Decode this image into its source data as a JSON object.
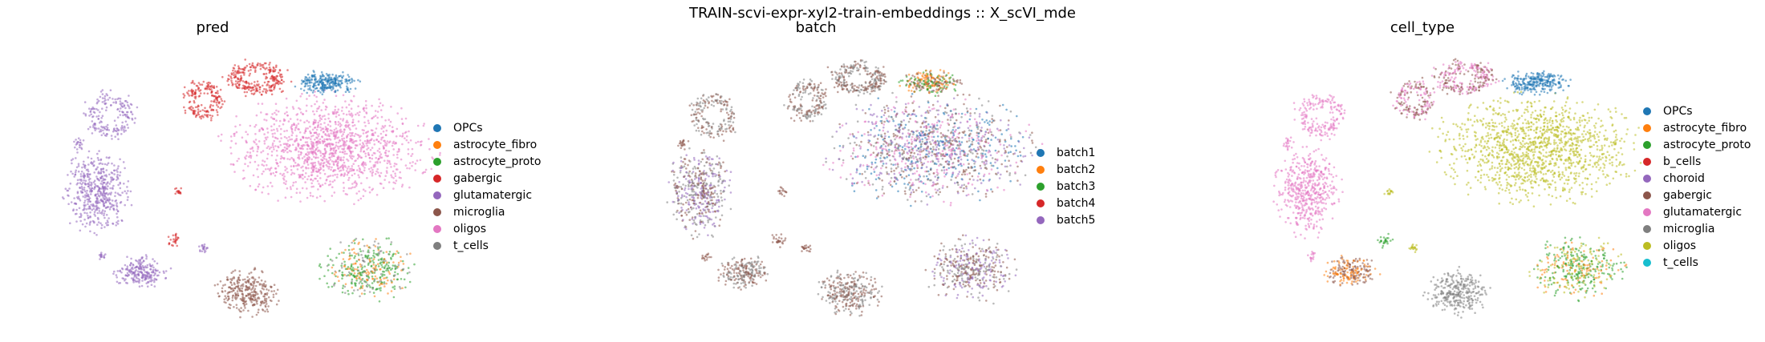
{
  "figure": {
    "suptitle": "TRAIN-scvi-expr-xyl2-train-embeddings :: X_scVI_mde"
  },
  "colors": {
    "tab_blue": "#1f77b4",
    "tab_orange": "#ff7f0e",
    "tab_green": "#2ca02c",
    "tab_red": "#d62728",
    "tab_purple": "#9467bd",
    "tab_brown": "#8c564b",
    "tab_pink": "#e377c2",
    "tab_gray": "#7f7f7f",
    "tab_olive": "#bcbd22",
    "tab_cyan": "#17becf"
  },
  "chart_data": [
    {
      "type": "scatter",
      "title": "pred",
      "legend_position": "right",
      "series": [
        {
          "name": "OPCs",
          "color": "#1f77b4"
        },
        {
          "name": "astrocyte_fibro",
          "color": "#ff7f0e"
        },
        {
          "name": "astrocyte_proto",
          "color": "#2ca02c"
        },
        {
          "name": "gabergic",
          "color": "#d62728"
        },
        {
          "name": "glutamatergic",
          "color": "#9467bd"
        },
        {
          "name": "microglia",
          "color": "#8c564b"
        },
        {
          "name": "oligos",
          "color": "#e377c2"
        },
        {
          "name": "t_cells",
          "color": "#7f7f7f"
        }
      ]
    },
    {
      "type": "scatter",
      "title": "batch",
      "legend_position": "right",
      "series": [
        {
          "name": "batch1",
          "color": "#1f77b4"
        },
        {
          "name": "batch2",
          "color": "#ff7f0e"
        },
        {
          "name": "batch3",
          "color": "#2ca02c"
        },
        {
          "name": "batch4",
          "color": "#d62728"
        },
        {
          "name": "batch5",
          "color": "#9467bd"
        }
      ]
    },
    {
      "type": "scatter",
      "title": "cell_type",
      "legend_position": "right",
      "series": [
        {
          "name": "OPCs",
          "color": "#1f77b4"
        },
        {
          "name": "astrocyte_fibro",
          "color": "#ff7f0e"
        },
        {
          "name": "astrocyte_proto",
          "color": "#2ca02c"
        },
        {
          "name": "b_cells",
          "color": "#d62728"
        },
        {
          "name": "choroid",
          "color": "#9467bd"
        },
        {
          "name": "gabergic",
          "color": "#8c564b"
        },
        {
          "name": "glutamatergic",
          "color": "#e377c2"
        },
        {
          "name": "microglia",
          "color": "#7f7f7f"
        },
        {
          "name": "oligos",
          "color": "#bcbd22"
        },
        {
          "name": "t_cells",
          "color": "#17becf"
        }
      ]
    }
  ]
}
